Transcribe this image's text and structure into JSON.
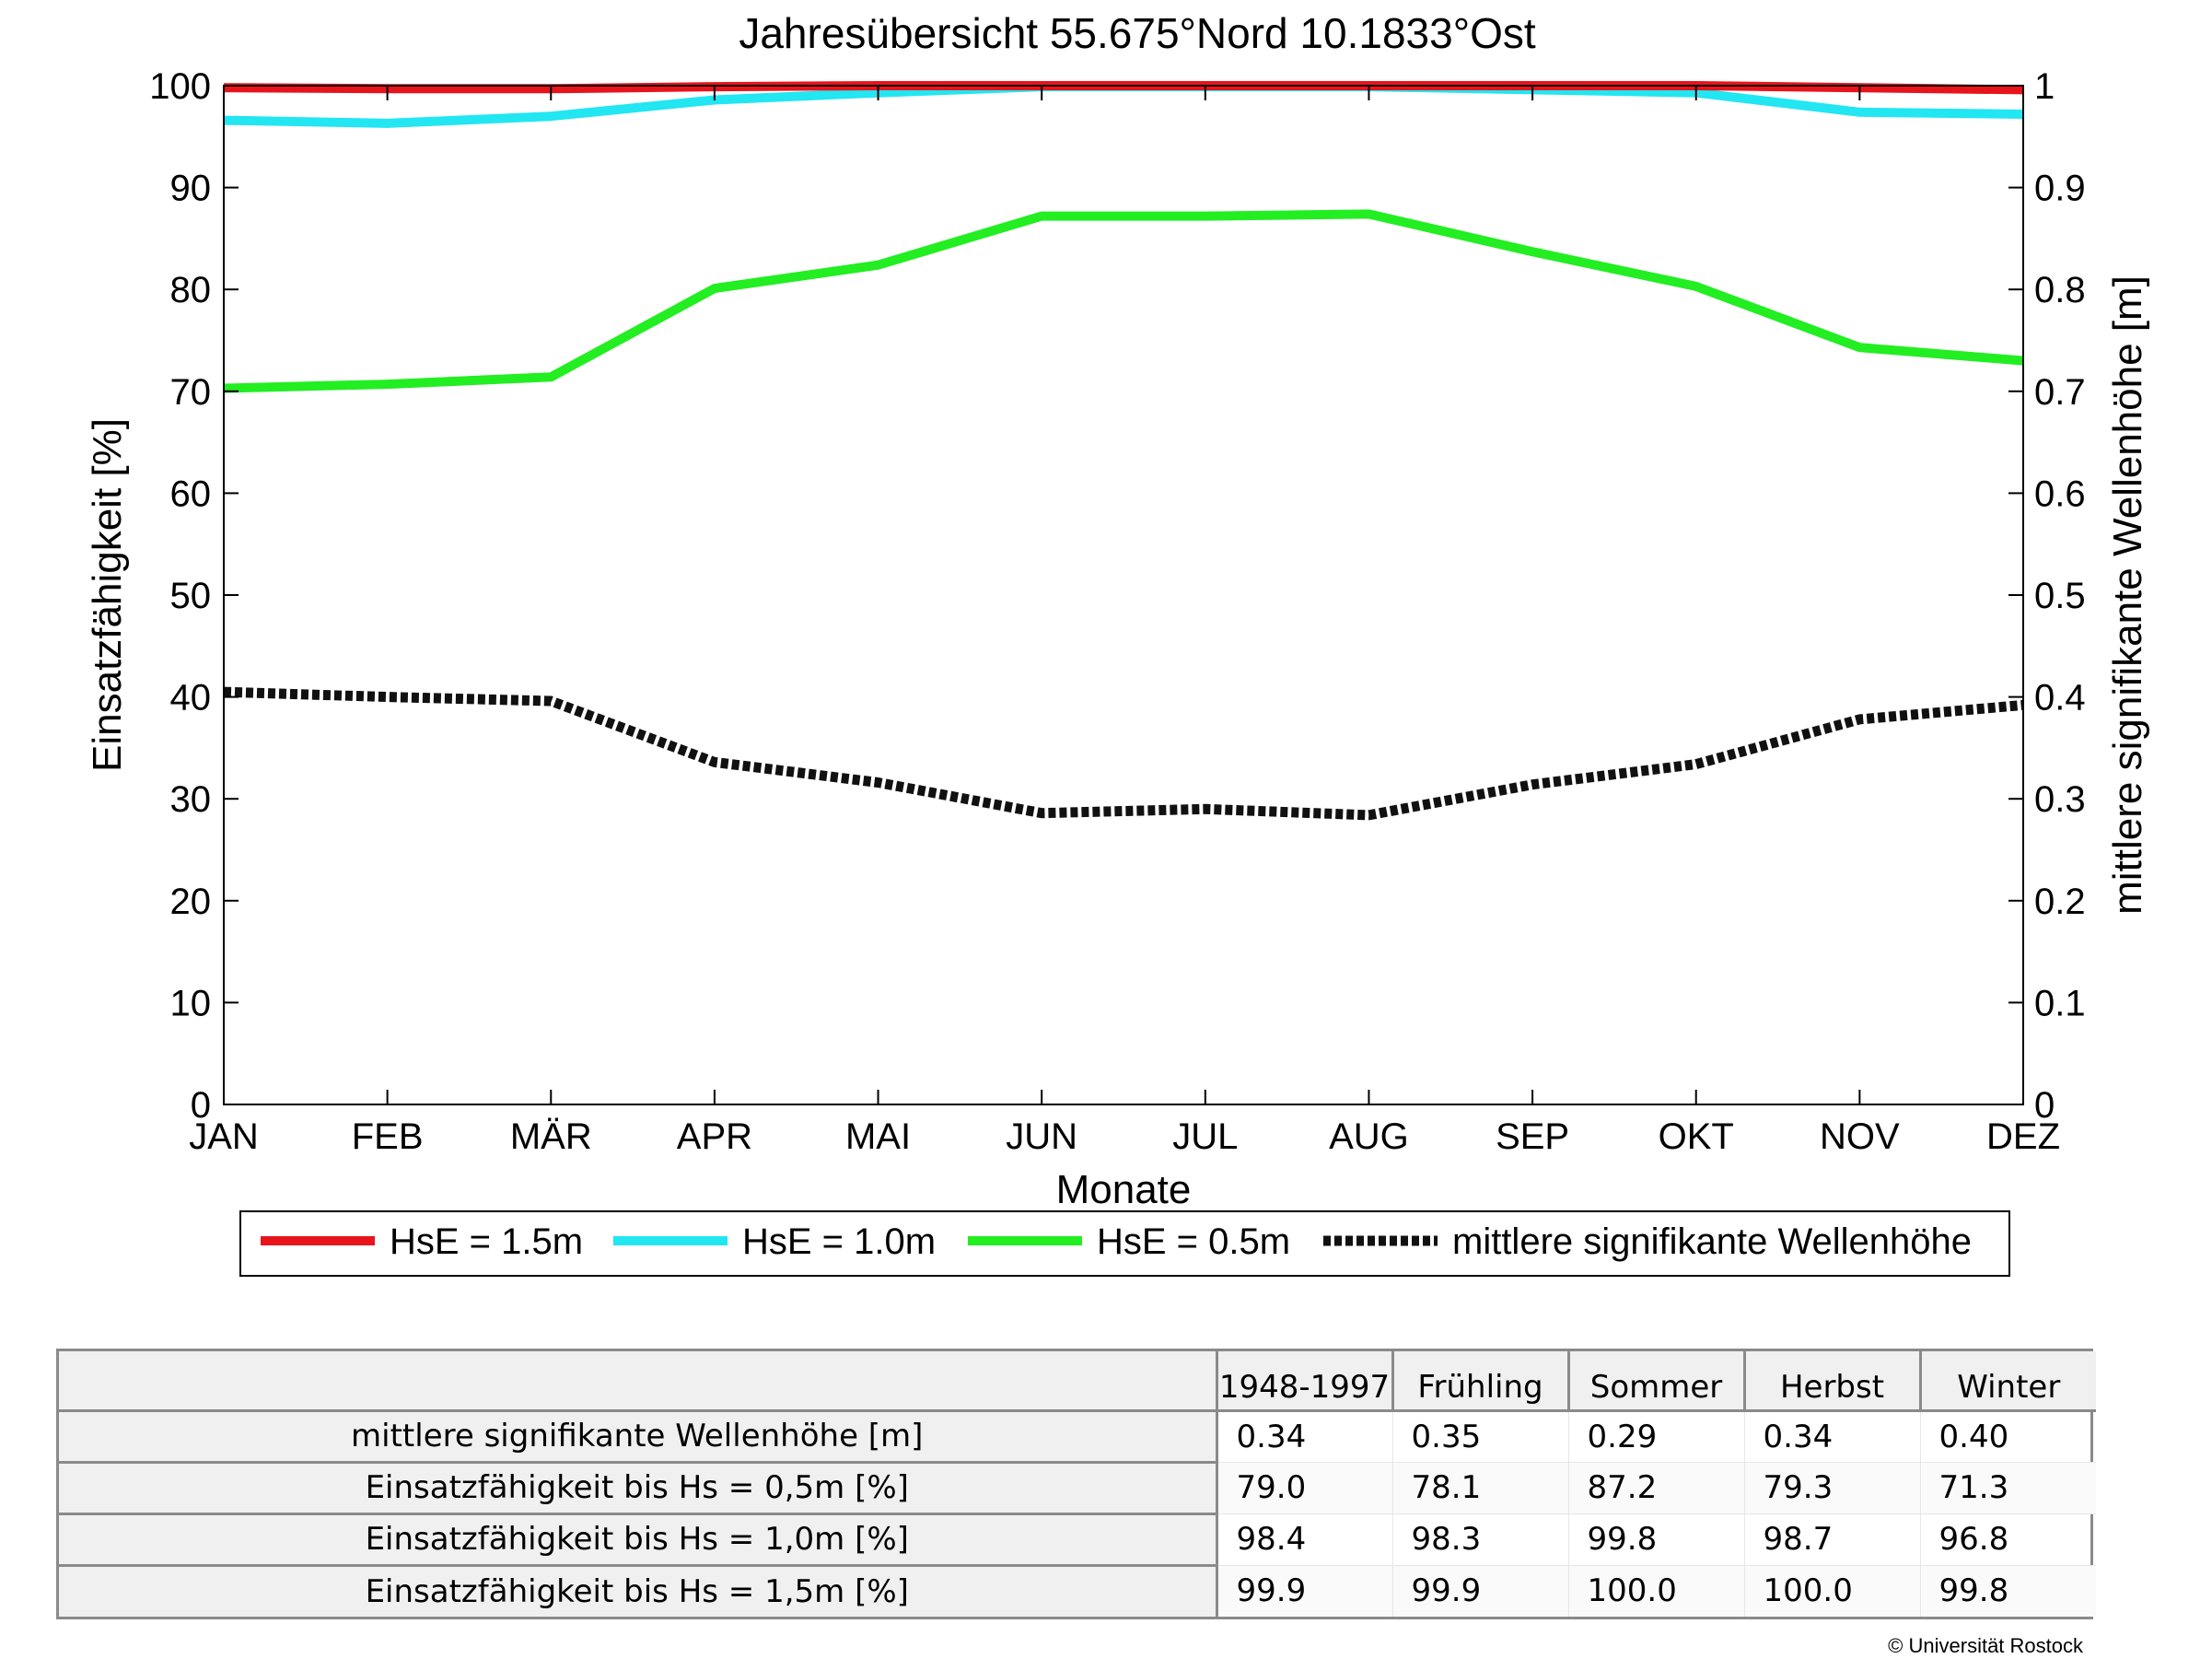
{
  "chart_data": {
    "type": "line",
    "title": "Jahresübersicht  55.675°Nord  10.1833°Ost",
    "xlabel": "Monate",
    "ylabel": "Einsatzfähigkeit [%]",
    "y2label": "mittlere signifikante Wellenhöhe [m]",
    "categories": [
      "JAN",
      "FEB",
      "MÄR",
      "APR",
      "MAI",
      "JUN",
      "JUL",
      "AUG",
      "SEP",
      "OKT",
      "NOV",
      "DEZ"
    ],
    "ylim": [
      0,
      100
    ],
    "yticks": [
      "0",
      "10",
      "20",
      "30",
      "40",
      "50",
      "60",
      "70",
      "80",
      "90",
      "100"
    ],
    "y2lim": [
      0,
      1
    ],
    "y2ticks": [
      "0",
      "0.1",
      "0.2",
      "0.3",
      "0.4",
      "0.5",
      "0.6",
      "0.7",
      "0.8",
      "0.9",
      "1"
    ],
    "grid": false,
    "legend_position": "bottom",
    "series": [
      {
        "name": "HsE = 1.5m",
        "axis": "left",
        "color": "#e8141c",
        "style": "solid",
        "values": [
          99.8,
          99.7,
          99.7,
          99.9,
          100.0,
          100.0,
          100.0,
          100.0,
          100.0,
          100.0,
          99.8,
          99.6
        ]
      },
      {
        "name": "HsE = 1.0m",
        "axis": "left",
        "color": "#22e6f2",
        "style": "solid",
        "values": [
          96.6,
          96.3,
          97.0,
          98.6,
          99.3,
          99.9,
          99.9,
          99.9,
          99.6,
          99.3,
          97.4,
          97.2
        ]
      },
      {
        "name": "HsE = 0.5m",
        "axis": "left",
        "color": "#22ee22",
        "style": "solid",
        "values": [
          70.3,
          70.7,
          71.4,
          80.1,
          82.4,
          87.2,
          87.2,
          87.4,
          83.7,
          80.3,
          74.3,
          73.0
        ]
      },
      {
        "name": "mittlere signifikante Wellenhöhe",
        "axis": "right",
        "color": "#111111",
        "style": "dotted",
        "values": [
          0.405,
          0.4,
          0.396,
          0.336,
          0.316,
          0.286,
          0.29,
          0.284,
          0.314,
          0.334,
          0.378,
          0.392
        ]
      }
    ]
  },
  "table": {
    "headers": [
      "",
      "1948-1997",
      "Frühling",
      "Sommer",
      "Herbst",
      "Winter"
    ],
    "rows": [
      {
        "label": "mittlere signifikante Wellenhöhe [m]",
        "values": [
          "0.34",
          "0.35",
          "0.29",
          "0.34",
          "0.40"
        ]
      },
      {
        "label": "Einsatzfähigkeit bis Hs = 0,5m [%]",
        "values": [
          "79.0",
          "78.1",
          "87.2",
          "79.3",
          "71.3"
        ]
      },
      {
        "label": "Einsatzfähigkeit bis Hs = 1,0m [%]",
        "values": [
          "98.4",
          "98.3",
          "99.8",
          "98.7",
          "96.8"
        ]
      },
      {
        "label": "Einsatzfähigkeit bis Hs = 1,5m [%]",
        "values": [
          "99.9",
          "99.9",
          "100.0",
          "100.0",
          "99.8"
        ]
      }
    ]
  },
  "copyright": "© Universität Rostock"
}
